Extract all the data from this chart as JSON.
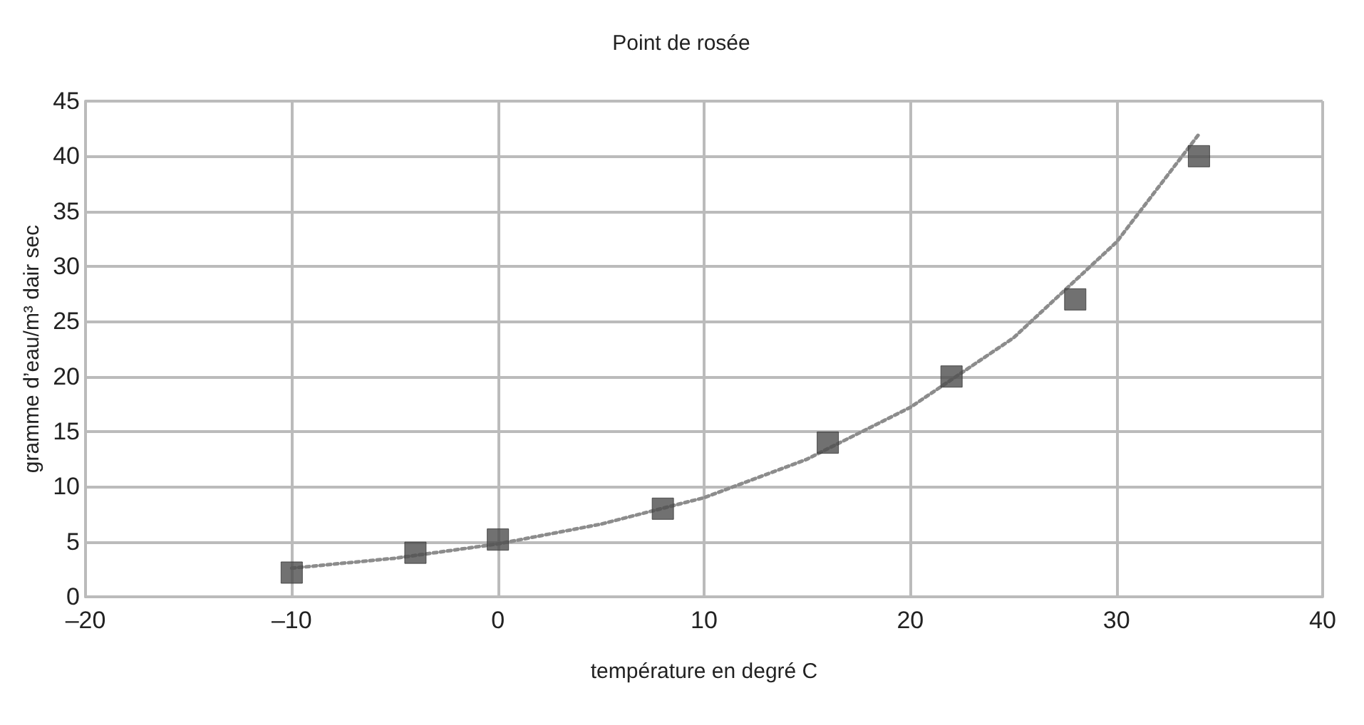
{
  "chart_data": {
    "type": "scatter",
    "title": "Point de rosée",
    "xlabel": "température en degré C",
    "ylabel": "gramme d’eau/m³ dair sec",
    "x": [
      -10,
      -4,
      0,
      8,
      16,
      22,
      28,
      34
    ],
    "series": [
      {
        "color": "#4d4d4d",
        "marker": "square",
        "values": [
          2.2,
          4,
          5.2,
          8,
          14,
          20,
          27,
          40
        ]
      },
      {
        "type": "line",
        "color": "#8c8c8c",
        "line_style": "dotted",
        "marker": "none",
        "x": [
          -10,
          -5,
          0,
          5,
          10,
          15,
          20,
          25,
          30,
          34
        ],
        "values": [
          2.6,
          3.5,
          4.8,
          6.6,
          9,
          12.5,
          17.2,
          23.5,
          32.2,
          42
        ]
      }
    ],
    "xlim": [
      -20,
      40
    ],
    "xticks": [
      {
        "value": -20,
        "label": "–20"
      },
      {
        "value": -10,
        "label": "–10"
      },
      0,
      10,
      20,
      30,
      40
    ],
    "ylim": [
      0,
      45
    ],
    "yticks": [
      0,
      5,
      10,
      15,
      20,
      25,
      30,
      35,
      40,
      45
    ],
    "grid": true
  }
}
